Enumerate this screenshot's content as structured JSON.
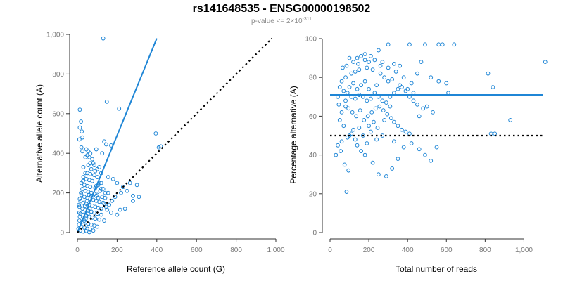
{
  "title": "rs141648535 - ENSG00000198502",
  "subtitle": {
    "prefix": "p-value <= 2×10",
    "exponent": "-311"
  },
  "colors": {
    "points": "#1f86d6",
    "fit": "#1f86d6",
    "reference": "#000000",
    "ticks": "#777777"
  },
  "chart_data": [
    {
      "type": "scatter",
      "id": "left",
      "xlabel": "Reference allele count (G)",
      "ylabel": "Alternative allele count (A)",
      "xlim": [
        0,
        1000
      ],
      "ylim": [
        0,
        1000
      ],
      "xticks": [
        0,
        200,
        400,
        600,
        800,
        1000
      ],
      "yticks": [
        0,
        200,
        400,
        600,
        800,
        1000
      ],
      "xtick_labels": [
        "0",
        "200",
        "400",
        "600",
        "800",
        "1,000"
      ],
      "ytick_labels": [
        "0",
        "200",
        "400",
        "600",
        "800",
        "1,000"
      ],
      "fit_line": {
        "x": [
          0,
          400
        ],
        "y": [
          0,
          980
        ]
      },
      "reference_line": {
        "x": [
          0,
          980
        ],
        "y": [
          0,
          980
        ],
        "style": "dotted"
      },
      "points": [
        [
          130,
          980
        ],
        [
          12,
          620
        ],
        [
          18,
          560
        ],
        [
          12,
          530
        ],
        [
          22,
          510
        ],
        [
          10,
          470
        ],
        [
          25,
          480
        ],
        [
          148,
          660
        ],
        [
          210,
          625
        ],
        [
          395,
          500
        ],
        [
          420,
          435
        ],
        [
          410,
          430
        ],
        [
          135,
          460
        ],
        [
          145,
          445
        ],
        [
          170,
          440
        ],
        [
          125,
          400
        ],
        [
          20,
          430
        ],
        [
          45,
          420
        ],
        [
          55,
          410
        ],
        [
          65,
          400
        ],
        [
          60,
          380
        ],
        [
          75,
          370
        ],
        [
          40,
          380
        ],
        [
          80,
          350
        ],
        [
          55,
          340
        ],
        [
          30,
          330
        ],
        [
          70,
          320
        ],
        [
          90,
          310
        ],
        [
          50,
          300
        ],
        [
          65,
          295
        ],
        [
          85,
          290
        ],
        [
          100,
          280
        ],
        [
          30,
          280
        ],
        [
          45,
          270
        ],
        [
          60,
          265
        ],
        [
          75,
          260
        ],
        [
          110,
          250
        ],
        [
          20,
          250
        ],
        [
          35,
          240
        ],
        [
          50,
          235
        ],
        [
          65,
          230
        ],
        [
          90,
          225
        ],
        [
          120,
          220
        ],
        [
          25,
          220
        ],
        [
          40,
          210
        ],
        [
          55,
          205
        ],
        [
          70,
          200
        ],
        [
          85,
          195
        ],
        [
          100,
          190
        ],
        [
          140,
          200
        ],
        [
          20,
          190
        ],
        [
          35,
          180
        ],
        [
          50,
          175
        ],
        [
          65,
          170
        ],
        [
          80,
          165
        ],
        [
          95,
          160
        ],
        [
          110,
          155
        ],
        [
          130,
          150
        ],
        [
          15,
          160
        ],
        [
          30,
          150
        ],
        [
          45,
          145
        ],
        [
          60,
          140
        ],
        [
          75,
          135
        ],
        [
          90,
          130
        ],
        [
          105,
          125
        ],
        [
          120,
          120
        ],
        [
          150,
          115
        ],
        [
          10,
          130
        ],
        [
          25,
          120
        ],
        [
          40,
          115
        ],
        [
          55,
          110
        ],
        [
          70,
          105
        ],
        [
          85,
          100
        ],
        [
          100,
          95
        ],
        [
          120,
          90
        ],
        [
          15,
          95
        ],
        [
          30,
          90
        ],
        [
          45,
          85
        ],
        [
          60,
          80
        ],
        [
          75,
          75
        ],
        [
          90,
          70
        ],
        [
          110,
          65
        ],
        [
          135,
          60
        ],
        [
          10,
          60
        ],
        [
          25,
          55
        ],
        [
          40,
          50
        ],
        [
          55,
          45
        ],
        [
          70,
          40
        ],
        [
          85,
          35
        ],
        [
          100,
          30
        ],
        [
          20,
          30
        ],
        [
          35,
          25
        ],
        [
          50,
          20
        ],
        [
          65,
          15
        ],
        [
          80,
          10
        ],
        [
          15,
          10
        ],
        [
          30,
          5
        ],
        [
          45,
          8
        ],
        [
          60,
          2
        ],
        [
          95,
          420
        ],
        [
          25,
          410
        ],
        [
          50,
          390
        ],
        [
          85,
          340
        ],
        [
          110,
          330
        ],
        [
          120,
          300
        ],
        [
          155,
          280
        ],
        [
          180,
          270
        ],
        [
          200,
          250
        ],
        [
          230,
          230
        ],
        [
          250,
          210
        ],
        [
          265,
          250
        ],
        [
          280,
          185
        ],
        [
          300,
          240
        ],
        [
          220,
          200
        ],
        [
          190,
          180
        ],
        [
          175,
          160
        ],
        [
          160,
          140
        ],
        [
          145,
          130
        ],
        [
          170,
          100
        ],
        [
          200,
          90
        ],
        [
          215,
          115
        ],
        [
          240,
          120
        ],
        [
          280,
          160
        ],
        [
          310,
          180
        ],
        [
          120,
          250
        ],
        [
          105,
          240
        ],
        [
          95,
          235
        ],
        [
          130,
          220
        ],
        [
          140,
          175
        ],
        [
          155,
          200
        ],
        [
          65,
          350
        ],
        [
          100,
          320
        ],
        [
          40,
          300
        ],
        [
          28,
          260
        ],
        [
          18,
          200
        ],
        [
          12,
          170
        ],
        [
          8,
          140
        ],
        [
          10,
          100
        ],
        [
          12,
          80
        ],
        [
          8,
          40
        ],
        [
          5,
          20
        ],
        [
          70,
          185
        ],
        [
          58,
          190
        ],
        [
          48,
          160
        ],
        [
          38,
          135
        ],
        [
          62,
          120
        ],
        [
          52,
          95
        ],
        [
          42,
          70
        ],
        [
          35,
          60
        ],
        [
          95,
          185
        ],
        [
          105,
          175
        ],
        [
          115,
          210
        ],
        [
          125,
          180
        ],
        [
          135,
          145
        ]
      ]
    },
    {
      "type": "scatter",
      "id": "right",
      "xlabel": "Total number of reads",
      "ylabel": "Percentage alternative (A)",
      "xlim": [
        0,
        1100
      ],
      "ylim": [
        0,
        100
      ],
      "xticks": [
        0,
        200,
        400,
        600,
        800,
        1000
      ],
      "yticks": [
        0,
        20,
        40,
        60,
        80,
        100
      ],
      "xtick_labels": [
        "0",
        "200",
        "400",
        "600",
        "800",
        "1,000"
      ],
      "ytick_labels": [
        "0",
        "20",
        "40",
        "60",
        "80",
        "100"
      ],
      "fit_line": {
        "x": [
          0,
          1100
        ],
        "y": [
          71,
          71
        ]
      },
      "reference_line": {
        "x": [
          0,
          1100
        ],
        "y": [
          50,
          50
        ],
        "style": "dotted"
      },
      "points": [
        [
          1110,
          88
        ],
        [
          815,
          82
        ],
        [
          840,
          75
        ],
        [
          930,
          58
        ],
        [
          830,
          51
        ],
        [
          850,
          51
        ],
        [
          640,
          97
        ],
        [
          580,
          97
        ],
        [
          560,
          97
        ],
        [
          490,
          97
        ],
        [
          410,
          97
        ],
        [
          300,
          97
        ],
        [
          250,
          94
        ],
        [
          180,
          92
        ],
        [
          160,
          91
        ],
        [
          140,
          90
        ],
        [
          100,
          90
        ],
        [
          120,
          88
        ],
        [
          200,
          88
        ],
        [
          230,
          89
        ],
        [
          270,
          88
        ],
        [
          330,
          87
        ],
        [
          360,
          86
        ],
        [
          470,
          88
        ],
        [
          450,
          82
        ],
        [
          520,
          80
        ],
        [
          560,
          78
        ],
        [
          600,
          77
        ],
        [
          610,
          72
        ],
        [
          420,
          77
        ],
        [
          380,
          80
        ],
        [
          340,
          83
        ],
        [
          300,
          85
        ],
        [
          260,
          86
        ],
        [
          220,
          84
        ],
        [
          190,
          85
        ],
        [
          150,
          84
        ],
        [
          130,
          83
        ],
        [
          110,
          82
        ],
        [
          80,
          80
        ],
        [
          60,
          78
        ],
        [
          50,
          75
        ],
        [
          40,
          70
        ],
        [
          70,
          73
        ],
        [
          90,
          72
        ],
        [
          110,
          70
        ],
        [
          130,
          69
        ],
        [
          150,
          71
        ],
        [
          170,
          70
        ],
        [
          190,
          68
        ],
        [
          210,
          69
        ],
        [
          230,
          72
        ],
        [
          250,
          70
        ],
        [
          270,
          68
        ],
        [
          290,
          67
        ],
        [
          310,
          70
        ],
        [
          330,
          72
        ],
        [
          350,
          74
        ],
        [
          370,
          75
        ],
        [
          390,
          73
        ],
        [
          410,
          70
        ],
        [
          430,
          68
        ],
        [
          450,
          66
        ],
        [
          480,
          64
        ],
        [
          500,
          65
        ],
        [
          530,
          62
        ],
        [
          300,
          78
        ],
        [
          280,
          80
        ],
        [
          240,
          76
        ],
        [
          200,
          74
        ],
        [
          180,
          78
        ],
        [
          160,
          76
        ],
        [
          140,
          74
        ],
        [
          120,
          77
        ],
        [
          100,
          75
        ],
        [
          80,
          65
        ],
        [
          95,
          64
        ],
        [
          115,
          62
        ],
        [
          135,
          60
        ],
        [
          155,
          63
        ],
        [
          175,
          58
        ],
        [
          195,
          60
        ],
        [
          215,
          62
        ],
        [
          235,
          64
        ],
        [
          255,
          65
        ],
        [
          275,
          63
        ],
        [
          295,
          61
        ],
        [
          315,
          59
        ],
        [
          330,
          57
        ],
        [
          350,
          55
        ],
        [
          370,
          53
        ],
        [
          390,
          52
        ],
        [
          410,
          51
        ],
        [
          200,
          55
        ],
        [
          150,
          54
        ],
        [
          120,
          53
        ],
        [
          100,
          50
        ],
        [
          90,
          49
        ],
        [
          60,
          47
        ],
        [
          40,
          45
        ],
        [
          30,
          40
        ],
        [
          55,
          42
        ],
        [
          75,
          35
        ],
        [
          95,
          32
        ],
        [
          85,
          21
        ],
        [
          140,
          45
        ],
        [
          160,
          42
        ],
        [
          180,
          40
        ],
        [
          220,
          36
        ],
        [
          250,
          30
        ],
        [
          290,
          29
        ],
        [
          320,
          33
        ],
        [
          350,
          38
        ],
        [
          380,
          44
        ],
        [
          420,
          46
        ],
        [
          460,
          43
        ],
        [
          490,
          40
        ],
        [
          520,
          37
        ],
        [
          550,
          44
        ],
        [
          330,
          47
        ],
        [
          270,
          50
        ],
        [
          240,
          48
        ],
        [
          210,
          52
        ],
        [
          190,
          46
        ],
        [
          170,
          50
        ],
        [
          130,
          48
        ],
        [
          110,
          51
        ],
        [
          70,
          55
        ],
        [
          50,
          58
        ],
        [
          60,
          62
        ],
        [
          80,
          68
        ],
        [
          45,
          66
        ],
        [
          65,
          85
        ],
        [
          85,
          86
        ],
        [
          210,
          91
        ],
        [
          180,
          89
        ],
        [
          145,
          87
        ],
        [
          260,
          82
        ],
        [
          320,
          79
        ],
        [
          360,
          76
        ],
        [
          400,
          74
        ],
        [
          430,
          72
        ],
        [
          460,
          60
        ],
        [
          310,
          65
        ],
        [
          280,
          58
        ],
        [
          245,
          54
        ],
        [
          225,
          57
        ]
      ]
    }
  ]
}
